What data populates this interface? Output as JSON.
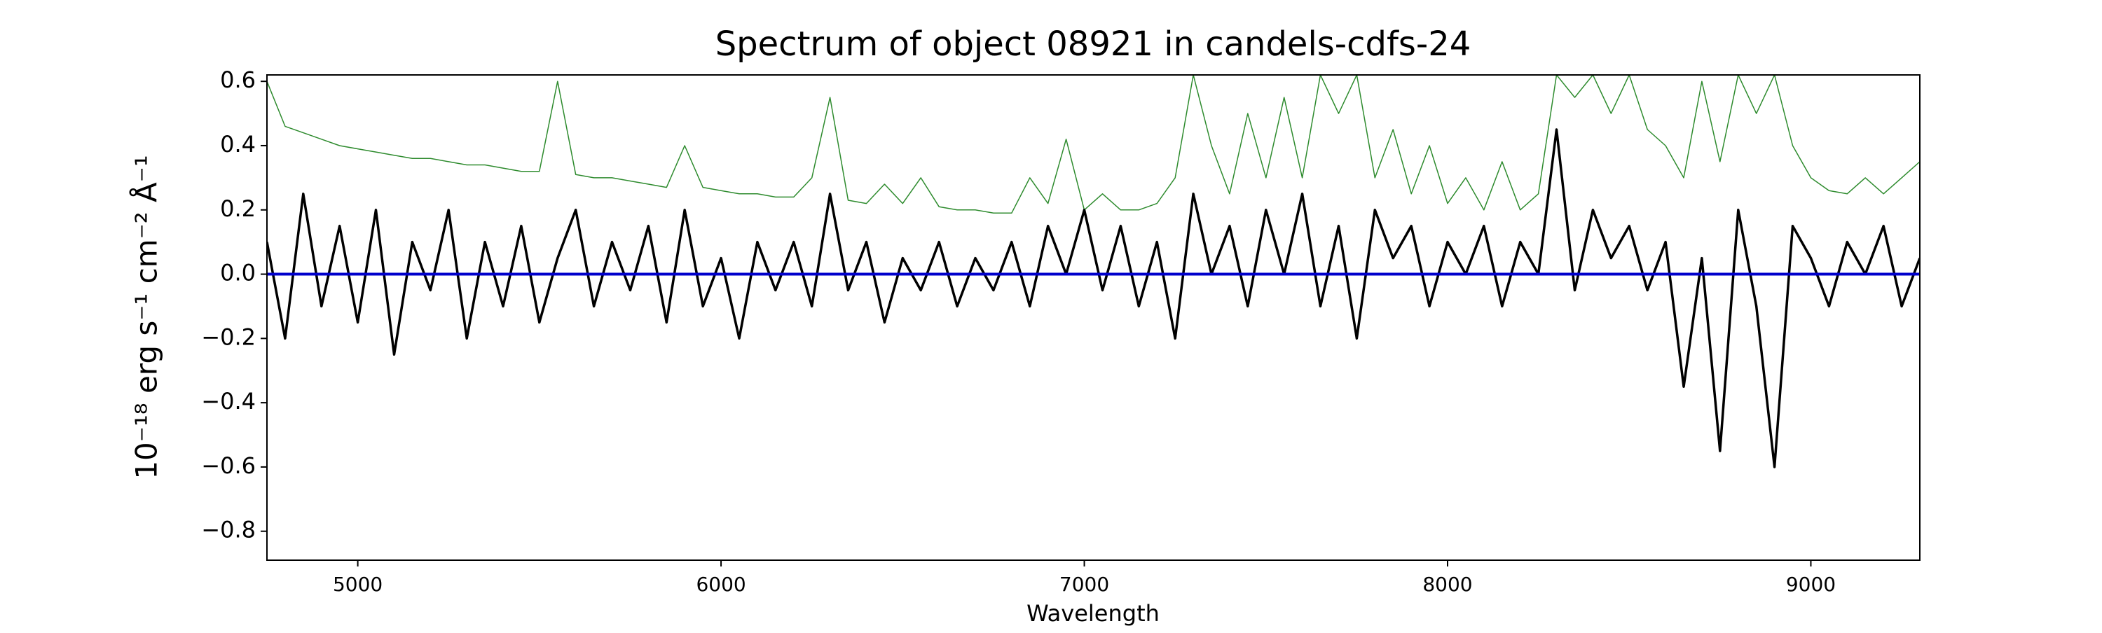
{
  "chart_data": {
    "type": "line",
    "title": "Spectrum of object 08921 in candels-cdfs-24",
    "xlabel": "Wavelength",
    "ylabel": "10⁻¹⁸ erg s⁻¹ cm⁻² Å⁻¹",
    "xlim": [
      4750,
      9300
    ],
    "ylim": [
      -0.89,
      0.62
    ],
    "xticks": [
      5000,
      6000,
      7000,
      8000,
      9000
    ],
    "yticks": [
      {
        "value": -0.8,
        "label": "−0.8"
      },
      {
        "value": -0.6,
        "label": "−0.6"
      },
      {
        "value": -0.4,
        "label": "−0.4"
      },
      {
        "value": -0.2,
        "label": "−0.2"
      },
      {
        "value": 0,
        "label": "0.0"
      },
      0.2,
      0.4,
      0.6
    ],
    "grid": false,
    "x": [
      4750,
      4800,
      4850,
      4900,
      4950,
      5000,
      5050,
      5100,
      5150,
      5200,
      5250,
      5300,
      5350,
      5400,
      5450,
      5500,
      5550,
      5600,
      5650,
      5700,
      5750,
      5800,
      5850,
      5900,
      5950,
      6000,
      6050,
      6100,
      6150,
      6200,
      6250,
      6300,
      6350,
      6400,
      6450,
      6500,
      6550,
      6600,
      6650,
      6700,
      6750,
      6800,
      6850,
      6900,
      6950,
      7000,
      7050,
      7100,
      7150,
      7200,
      7250,
      7300,
      7350,
      7400,
      7450,
      7500,
      7550,
      7600,
      7650,
      7700,
      7750,
      7800,
      7850,
      7900,
      7950,
      8000,
      8050,
      8100,
      8150,
      8200,
      8250,
      8300,
      8350,
      8400,
      8450,
      8500,
      8550,
      8600,
      8650,
      8700,
      8750,
      8800,
      8850,
      8900,
      8950,
      9000,
      9050,
      9100,
      9150,
      9200,
      9250,
      9300
    ],
    "series": [
      {
        "color": "#2e8b2e",
        "width": 1.5,
        "values": [
          0.6,
          0.46,
          0.44,
          0.42,
          0.4,
          0.39,
          0.38,
          0.37,
          0.36,
          0.36,
          0.35,
          0.34,
          0.34,
          0.33,
          0.32,
          0.32,
          0.6,
          0.31,
          0.3,
          0.3,
          0.29,
          0.28,
          0.27,
          0.4,
          0.27,
          0.26,
          0.25,
          0.25,
          0.24,
          0.24,
          0.3,
          0.55,
          0.23,
          0.22,
          0.28,
          0.22,
          0.3,
          0.21,
          0.2,
          0.2,
          0.19,
          0.19,
          0.3,
          0.22,
          0.42,
          0.2,
          0.25,
          0.2,
          0.2,
          0.22,
          0.3,
          0.62,
          0.4,
          0.25,
          0.5,
          0.3,
          0.55,
          0.3,
          0.62,
          0.5,
          0.62,
          0.3,
          0.45,
          0.25,
          0.4,
          0.22,
          0.3,
          0.2,
          0.35,
          0.2,
          0.25,
          0.62,
          0.55,
          0.62,
          0.5,
          0.62,
          0.45,
          0.4,
          0.3,
          0.6,
          0.35,
          0.62,
          0.5,
          0.62,
          0.4,
          0.3,
          0.26,
          0.25,
          0.3,
          0.25,
          0.3,
          0.35
        ]
      },
      {
        "color": "#000000",
        "width": 3.5,
        "values": [
          0.1,
          -0.2,
          0.25,
          -0.1,
          0.15,
          -0.15,
          0.2,
          -0.25,
          0.1,
          -0.05,
          0.2,
          -0.2,
          0.1,
          -0.1,
          0.15,
          -0.15,
          0.05,
          0.2,
          -0.1,
          0.1,
          -0.05,
          0.15,
          -0.15,
          0.2,
          -0.1,
          0.05,
          -0.2,
          0.1,
          -0.05,
          0.1,
          -0.1,
          0.25,
          -0.05,
          0.1,
          -0.15,
          0.05,
          -0.05,
          0.1,
          -0.1,
          0.05,
          -0.05,
          0.1,
          -0.1,
          0.15,
          0.0,
          0.2,
          -0.05,
          0.15,
          -0.1,
          0.1,
          -0.2,
          0.25,
          0.0,
          0.15,
          -0.1,
          0.2,
          0.0,
          0.25,
          -0.1,
          0.15,
          -0.2,
          0.2,
          0.05,
          0.15,
          -0.1,
          0.1,
          0.0,
          0.15,
          -0.1,
          0.1,
          0.0,
          0.45,
          -0.05,
          0.2,
          0.05,
          0.15,
          -0.05,
          0.1,
          -0.35,
          0.05,
          -0.55,
          0.2,
          -0.1,
          -0.6,
          0.15,
          0.05,
          -0.1,
          0.1,
          0.0,
          0.15,
          -0.1,
          0.05
        ]
      },
      {
        "color": "#0000cc",
        "width": 4,
        "values": [
          0,
          0,
          0,
          0,
          0,
          0,
          0,
          0,
          0,
          0,
          0,
          0,
          0,
          0,
          0,
          0,
          0,
          0,
          0,
          0,
          0,
          0,
          0,
          0,
          0,
          0,
          0,
          0,
          0,
          0,
          0,
          0,
          0,
          0,
          0,
          0,
          0,
          0,
          0,
          0,
          0,
          0,
          0,
          0,
          0,
          0,
          0,
          0,
          0,
          0,
          0,
          0,
          0,
          0,
          0,
          0,
          0,
          0,
          0,
          0,
          0,
          0,
          0,
          0,
          0,
          0,
          0,
          0,
          0,
          0,
          0,
          0,
          0,
          0,
          0,
          0,
          0,
          0,
          0,
          0,
          0,
          0,
          0,
          0,
          0,
          0,
          0,
          0,
          0,
          0,
          0,
          0
        ]
      }
    ]
  }
}
